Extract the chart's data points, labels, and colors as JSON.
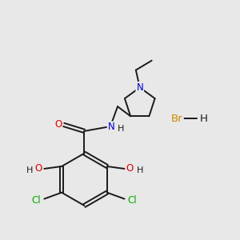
{
  "background_color": "#e8e8e8",
  "bond_color": "#1a1a1a",
  "atom_colors": {
    "N": "#0000cc",
    "O": "#dd0000",
    "Cl": "#00aa00",
    "Br": "#cc8800",
    "H": "#1a1a1a",
    "C": "#1a1a1a"
  },
  "figsize": [
    3.0,
    3.0
  ],
  "dpi": 100,
  "bond_lw": 1.4,
  "font_size": 8.5
}
